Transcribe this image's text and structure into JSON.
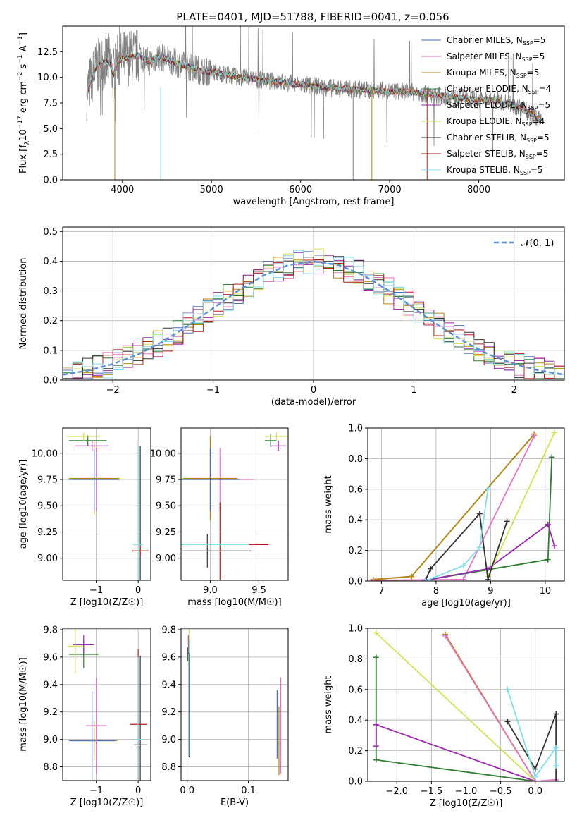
{
  "figure_title": "PLATE=0401, MJD=51788, FIBERID=0041, z=0.056",
  "series": [
    {
      "name": "Chabrier MILES, N_SSP=5",
      "label_main": "Chabrier MILES, N",
      "label_sub": "SSP",
      "label_tail": "=5",
      "color": "#4c72b0"
    },
    {
      "name": "Salpeter MILES, N_SSP=5",
      "label_main": "Salpeter MILES, N",
      "label_sub": "SSP",
      "label_tail": "=5",
      "color": "#e377c2"
    },
    {
      "name": "Kroupa MILES, N_SSP=5",
      "label_main": "Kroupa MILES, N",
      "label_sub": "SSP",
      "label_tail": "=5",
      "color": "#b8860b"
    },
    {
      "name": "Chabrier ELODIE, N_SSP=4",
      "label_main": "Chabrier ELODIE, N",
      "label_sub": "SSP",
      "label_tail": "=4",
      "color": "#2e7d32"
    },
    {
      "name": "Salpeter ELODIE, N_SSP=5",
      "label_main": "Salpeter ELODIE, N",
      "label_sub": "SSP",
      "label_tail": "=5",
      "color": "#9c27b0"
    },
    {
      "name": "Kroupa ELODIE, N_SSP=4",
      "label_main": "Kroupa ELODIE, N",
      "label_sub": "SSP",
      "label_tail": "=4",
      "color": "#d4e157"
    },
    {
      "name": "Chabrier STELIB, N_SSP=5",
      "label_main": "Chabrier STELIB, N",
      "label_sub": "SSP",
      "label_tail": "=5",
      "color": "#333333"
    },
    {
      "name": "Salpeter STELIB, N_SSP=5",
      "label_main": "Salpeter STELIB, N",
      "label_sub": "SSP",
      "label_tail": "=5",
      "color": "#b71c1c"
    },
    {
      "name": "Kroupa STELIB, N_SSP=5",
      "label_main": "Kroupa STELIB, N",
      "label_sub": "SSP",
      "label_tail": "=5",
      "color": "#80deea"
    }
  ],
  "chart_data": [
    {
      "id": "spectrum",
      "type": "line",
      "xlabel": "wavelength [Angstrom, rest frame]",
      "ylabel": "Flux [f_λ 10^-17 erg cm^-2 s^-1 A^-1]",
      "ylabel_parts": [
        "Flux [f",
        "λ",
        "10",
        "−17",
        " erg cm",
        "−2",
        " s",
        "−1",
        " A",
        "−1",
        "]"
      ],
      "xlim": [
        3330,
        8960
      ],
      "ylim": [
        0,
        15
      ],
      "xticks": [
        4000,
        5000,
        6000,
        7000,
        8000
      ],
      "yticks": [
        0.0,
        2.5,
        5.0,
        7.5,
        10.0,
        12.5
      ],
      "ytick_labels": [
        "0.0",
        "2.5",
        "5.0",
        "7.5",
        "10.0",
        "12.5"
      ],
      "data_color": "#808080",
      "model_color": "#7fd3db",
      "spectrum_x": [
        3600,
        3650,
        3700,
        3750,
        3800,
        3850,
        3900,
        3950,
        4000,
        4100,
        4200,
        4300,
        4400,
        4500,
        4600,
        4700,
        4800,
        4900,
        5000,
        5100,
        5200,
        5300,
        5400,
        5500,
        5600,
        5700,
        5800,
        5900,
        6000,
        6100,
        6200,
        6300,
        6400,
        6500,
        6600,
        6700,
        6800,
        6900,
        7000,
        7100,
        7200,
        7300,
        7400,
        7500,
        7600,
        7700,
        7800,
        7900,
        8000,
        8100,
        8200,
        8300,
        8400,
        8500,
        8600,
        8700
      ],
      "spectrum_y": [
        8.5,
        9.8,
        10.8,
        11.2,
        11.5,
        11.6,
        10.2,
        11.6,
        11.8,
        12.0,
        12.1,
        11.5,
        12.0,
        11.8,
        11.4,
        11.1,
        10.9,
        10.6,
        10.5,
        10.4,
        10.2,
        10.0,
        9.9,
        9.8,
        9.7,
        9.6,
        9.5,
        9.4,
        9.3,
        9.2,
        9.1,
        9.0,
        8.9,
        8.9,
        8.8,
        8.8,
        8.7,
        8.7,
        8.6,
        8.6,
        8.6,
        8.5,
        8.4,
        8.3,
        8.2,
        8.1,
        8.0,
        7.9,
        7.8,
        7.8,
        7.7,
        7.5,
        7.3,
        6.8,
        6.4,
        5.7
      ]
    },
    {
      "id": "residuals",
      "type": "line",
      "xlabel": "(data-model)/error",
      "ylabel": "Normed distribution",
      "xlim": [
        -2.5,
        2.5
      ],
      "ylim": [
        0,
        0.515
      ],
      "xticks": [
        -2,
        -1,
        0,
        1,
        2
      ],
      "xtick_labels": [
        "−2",
        "−1",
        "0",
        "1",
        "2"
      ],
      "yticks": [
        0.0,
        0.1,
        0.2,
        0.3,
        0.4,
        0.5
      ],
      "ytick_labels": [
        "0.0",
        "0.1",
        "0.2",
        "0.3",
        "0.4",
        "0.5"
      ],
      "legend_label": "𝒩(0, 1)",
      "legend_color": "#5b8fd8",
      "legend_position": "top-right",
      "bin_width": 0.1,
      "bin_centers": [
        -2.45,
        -2.35,
        -2.25,
        -2.15,
        -2.05,
        -1.95,
        -1.85,
        -1.75,
        -1.65,
        -1.55,
        -1.45,
        -1.35,
        -1.25,
        -1.15,
        -1.05,
        -0.95,
        -0.85,
        -0.75,
        -0.65,
        -0.55,
        -0.45,
        -0.35,
        -0.25,
        -0.15,
        -0.05,
        0.05,
        0.15,
        0.25,
        0.35,
        0.45,
        0.55,
        0.65,
        0.75,
        0.85,
        0.95,
        1.05,
        1.15,
        1.25,
        1.35,
        1.45,
        1.55,
        1.65,
        1.75,
        1.85,
        1.95,
        2.05,
        2.15,
        2.25,
        2.35,
        2.45
      ],
      "gauss_x": [
        -2.5,
        -2.25,
        -2.0,
        -1.75,
        -1.5,
        -1.25,
        -1.0,
        -0.75,
        -0.5,
        -0.25,
        0.0,
        0.25,
        0.5,
        0.75,
        1.0,
        1.25,
        1.5,
        1.75,
        2.0,
        2.25,
        2.5
      ],
      "gauss_y": [
        0.018,
        0.032,
        0.054,
        0.086,
        0.13,
        0.183,
        0.242,
        0.301,
        0.352,
        0.387,
        0.399,
        0.387,
        0.352,
        0.301,
        0.242,
        0.183,
        0.13,
        0.086,
        0.054,
        0.032,
        0.018
      ]
    },
    {
      "id": "age-vs-Z",
      "type": "scatter",
      "xlabel": "Z [log10(Z/Z☉)]",
      "ylabel": "age [log10(age/yr)]",
      "xlim": [
        -1.8,
        0.3
      ],
      "ylim": [
        8.79,
        10.24
      ],
      "xticks": [
        -1,
        0
      ],
      "xtick_labels": [
        "−1",
        "0"
      ],
      "yticks": [
        9.0,
        9.25,
        9.5,
        9.75,
        10.0
      ],
      "ytick_labels": [
        "9.00",
        "9.25",
        "9.50",
        "9.75",
        "10.00"
      ],
      "points": [
        {
          "series": 2,
          "x": -1.05,
          "y": 9.76,
          "xerr": 0.6,
          "yerr": 0.35
        },
        {
          "series": 1,
          "x": -1.0,
          "y": 9.75,
          "xerr": 0.55,
          "yerr": 0.3
        },
        {
          "series": 0,
          "x": -1.05,
          "y": 9.75,
          "xerr": 0.6,
          "yerr": 0.3
        },
        {
          "series": 3,
          "x": -1.2,
          "y": 10.12,
          "xerr": 0.45,
          "yerr": 0.05
        },
        {
          "series": 4,
          "x": -1.1,
          "y": 10.07,
          "xerr": 0.4,
          "yerr": 0.05
        },
        {
          "series": 5,
          "x": -1.3,
          "y": 10.16,
          "xerr": 0.4,
          "yerr": 0.04
        },
        {
          "series": 6,
          "x": 0.05,
          "y": 9.07,
          "xerr": 0.2,
          "yerr": 1.0
        },
        {
          "series": 7,
          "x": 0.05,
          "y": 9.07,
          "xerr": 0.2,
          "yerr": 0.05
        },
        {
          "series": 8,
          "x": 0.0,
          "y": 9.13,
          "xerr": 0.12,
          "yerr": 0.95
        }
      ]
    },
    {
      "id": "age-vs-mass",
      "type": "scatter",
      "xlabel": "mass [log10(M/M☉)]",
      "ylabel": "",
      "xlim": [
        8.7,
        9.8
      ],
      "ylim": [
        8.79,
        10.24
      ],
      "xticks": [
        9.0,
        9.5
      ],
      "xtick_labels": [
        "9.0",
        "9.5"
      ],
      "yticks": [
        9.0,
        9.25,
        9.5,
        9.75,
        10.0
      ],
      "ytick_labels": [
        "9.00",
        "9.25",
        "9.50",
        "9.75",
        "10.00"
      ],
      "points": [
        {
          "series": 2,
          "x": 9.0,
          "y": 9.76,
          "xerr": 0.28,
          "yerr": 0.4
        },
        {
          "series": 1,
          "x": 9.1,
          "y": 9.75,
          "xerr": 0.35,
          "yerr": 0.3
        },
        {
          "series": 0,
          "x": 9.0,
          "y": 9.75,
          "xerr": 0.3,
          "yerr": 0.3
        },
        {
          "series": 3,
          "x": 9.62,
          "y": 10.12,
          "xerr": 0.06,
          "yerr": 0.06
        },
        {
          "series": 4,
          "x": 9.7,
          "y": 10.07,
          "xerr": 0.08,
          "yerr": 0.05
        },
        {
          "series": 5,
          "x": 9.68,
          "y": 10.16,
          "xerr": 0.12,
          "yerr": 0.04
        },
        {
          "series": 6,
          "x": 8.97,
          "y": 9.07,
          "xerr": 0.45,
          "yerr": 0.16
        },
        {
          "series": 7,
          "x": 9.1,
          "y": 9.13,
          "xerr": 0.5,
          "yerr": 0.4
        },
        {
          "series": 8,
          "x": 9.0,
          "y": 9.13,
          "xerr": 0.4,
          "yerr": 0.0
        }
      ]
    },
    {
      "id": "weight-vs-age",
      "type": "line",
      "xlabel": "age [log10(age/yr)]",
      "ylabel": "mass weight",
      "xlim": [
        6.75,
        10.35
      ],
      "ylim": [
        0,
        1.0
      ],
      "xticks": [
        7,
        8,
        9,
        10
      ],
      "xtick_labels": [
        "7",
        "8",
        "9",
        "10"
      ],
      "yticks": [
        0.0,
        0.2,
        0.4,
        0.6,
        0.8,
        1.0
      ],
      "ytick_labels": [
        "0.0",
        "0.2",
        "0.4",
        "0.6",
        "0.8",
        "1.0"
      ],
      "lines": [
        {
          "series": 0,
          "x": [
            6.85,
            7.55,
            9.8
          ],
          "y": [
            0.01,
            0.03,
            0.96
          ]
        },
        {
          "series": 2,
          "x": [
            6.85,
            7.55,
            9.8
          ],
          "y": [
            0.01,
            0.03,
            0.96
          ]
        },
        {
          "series": 1,
          "x": [
            6.85,
            8.5,
            9.8
          ],
          "y": [
            0.005,
            0.01,
            0.95
          ]
        },
        {
          "series": 3,
          "x": [
            7.8,
            10.05,
            10.12
          ],
          "y": [
            0.005,
            0.14,
            0.81
          ]
        },
        {
          "series": 4,
          "x": [
            7.8,
            8.95,
            10.05,
            10.17
          ],
          "y": [
            0.005,
            0.08,
            0.37,
            0.23
          ]
        },
        {
          "series": 5,
          "x": [
            8.95,
            10.17
          ],
          "y": [
            0.03,
            0.97
          ]
        },
        {
          "series": 6,
          "x": [
            7.8,
            7.9,
            8.8,
            8.95,
            9.3
          ],
          "y": [
            0.0,
            0.08,
            0.44,
            0.01,
            0.39
          ]
        },
        {
          "series": 8,
          "x": [
            7.8,
            8.5,
            8.8,
            8.95
          ],
          "y": [
            0.0,
            0.1,
            0.22,
            0.6
          ]
        }
      ]
    },
    {
      "id": "mass-vs-Z",
      "type": "scatter",
      "xlabel": "Z [log10(Z/Z☉)]",
      "ylabel": "mass [log10(M/M☉)]",
      "xlim": [
        -1.8,
        0.3
      ],
      "ylim": [
        8.7,
        9.81
      ],
      "xticks": [
        -1,
        0
      ],
      "xtick_labels": [
        "−1",
        "0"
      ],
      "yticks": [
        8.8,
        9.0,
        9.2,
        9.4,
        9.6,
        9.8
      ],
      "ytick_labels": [
        "8.8",
        "9.0",
        "9.2",
        "9.4",
        "9.6",
        "9.8"
      ],
      "points": [
        {
          "series": 2,
          "x": -1.05,
          "y": 8.99,
          "xerr": 0.55,
          "yerr": 0.14
        },
        {
          "series": 0,
          "x": -1.1,
          "y": 8.99,
          "xerr": 0.55,
          "yerr": 0.36
        },
        {
          "series": 1,
          "x": -1.0,
          "y": 9.1,
          "xerr": 0.25,
          "yerr": 0.35
        },
        {
          "series": 3,
          "x": -1.3,
          "y": 9.62,
          "xerr": 0.35,
          "yerr": 0.1
        },
        {
          "series": 4,
          "x": -1.3,
          "y": 9.69,
          "xerr": 0.25,
          "yerr": 0.07
        },
        {
          "series": 5,
          "x": -1.5,
          "y": 9.68,
          "xerr": 0.18,
          "yerr": 0.2
        },
        {
          "series": 6,
          "x": 0.05,
          "y": 8.96,
          "xerr": 0.15,
          "yerr": 0.65
        },
        {
          "series": 7,
          "x": 0.0,
          "y": 9.11,
          "xerr": 0.2,
          "yerr": 0.55
        },
        {
          "series": 8,
          "x": 0.0,
          "y": 9.0,
          "xerr": 0.1,
          "yerr": 0.6
        }
      ]
    },
    {
      "id": "mass-vs-EBV",
      "type": "scatter",
      "xlabel": "E(B-V)",
      "ylabel": "",
      "xlim": [
        -0.01,
        0.165
      ],
      "ylim": [
        8.7,
        9.81
      ],
      "xticks": [
        0.0,
        0.1
      ],
      "xtick_labels": [
        "0.0",
        "0.1"
      ],
      "yticks": [
        8.8,
        9.0,
        9.2,
        9.4,
        9.6,
        9.8
      ],
      "ytick_labels": [
        "8.8",
        "9.0",
        "9.2",
        "9.4",
        "9.6",
        "9.8"
      ],
      "points": [
        {
          "series": 0,
          "x": 0.147,
          "y": 9.11,
          "xerr": 0,
          "yerr": 0.25
        },
        {
          "series": 2,
          "x": 0.15,
          "y": 8.99,
          "xerr": 0,
          "yerr": 0.25
        },
        {
          "series": 1,
          "x": 0.153,
          "y": 9.1,
          "xerr": 0,
          "yerr": 0.35
        },
        {
          "series": 3,
          "x": 0.001,
          "y": 9.62,
          "xerr": 0,
          "yerr": 0.05
        },
        {
          "series": 4,
          "x": 0.002,
          "y": 9.69,
          "xerr": 0,
          "yerr": 0.07
        },
        {
          "series": 5,
          "x": 0.003,
          "y": 9.68,
          "xerr": 0,
          "yerr": 0.15
        },
        {
          "series": 6,
          "x": 0.003,
          "y": 9.25,
          "xerr": 0,
          "yerr": 0.38
        },
        {
          "series": 7,
          "x": 0.004,
          "y": 9.4,
          "xerr": 0,
          "yerr": 0.22
        },
        {
          "series": 8,
          "x": 0.004,
          "y": 9.3,
          "xerr": 0,
          "yerr": 0.42
        }
      ]
    },
    {
      "id": "weight-vs-Z",
      "type": "line",
      "xlabel": "Z [log10(Z/Z☉)]",
      "ylabel": "mass weight",
      "xlim": [
        -2.42,
        0.42
      ],
      "ylim": [
        0,
        1.0
      ],
      "xticks": [
        -2.0,
        -1.5,
        -1.0,
        -0.5,
        0.0
      ],
      "xtick_labels": [
        "−2.0",
        "−1.5",
        "−1.0",
        "−0.5",
        "0.0"
      ],
      "yticks": [
        0.0,
        0.2,
        0.4,
        0.6,
        0.8,
        1.0
      ],
      "ytick_labels": [
        "0.0",
        "0.2",
        "0.4",
        "0.6",
        "0.8",
        "1.0"
      ],
      "lines": [
        {
          "series": 2,
          "x": [
            -1.3,
            0.0
          ],
          "y": [
            0.96,
            0.0
          ]
        },
        {
          "series": 1,
          "x": [
            -1.3,
            0.0,
            0.3
          ],
          "y": [
            0.95,
            0.0,
            0.01
          ]
        },
        {
          "series": 5,
          "x": [
            -2.3,
            0.0
          ],
          "y": [
            0.97,
            0.0
          ]
        },
        {
          "series": 3,
          "x": [
            -2.3,
            -2.3,
            0.0
          ],
          "y": [
            0.81,
            0.14,
            0.0
          ]
        },
        {
          "series": 4,
          "x": [
            -2.3,
            -2.3,
            0.0
          ],
          "y": [
            0.23,
            0.37,
            0.0
          ]
        },
        {
          "series": 6,
          "x": [
            -0.4,
            0.0,
            0.3,
            0.3
          ],
          "y": [
            0.39,
            0.08,
            0.44,
            0.0
          ]
        },
        {
          "series": 8,
          "x": [
            -0.4,
            0.0,
            0.3,
            0.3
          ],
          "y": [
            0.6,
            0.03,
            0.22,
            0.1
          ]
        }
      ]
    }
  ]
}
